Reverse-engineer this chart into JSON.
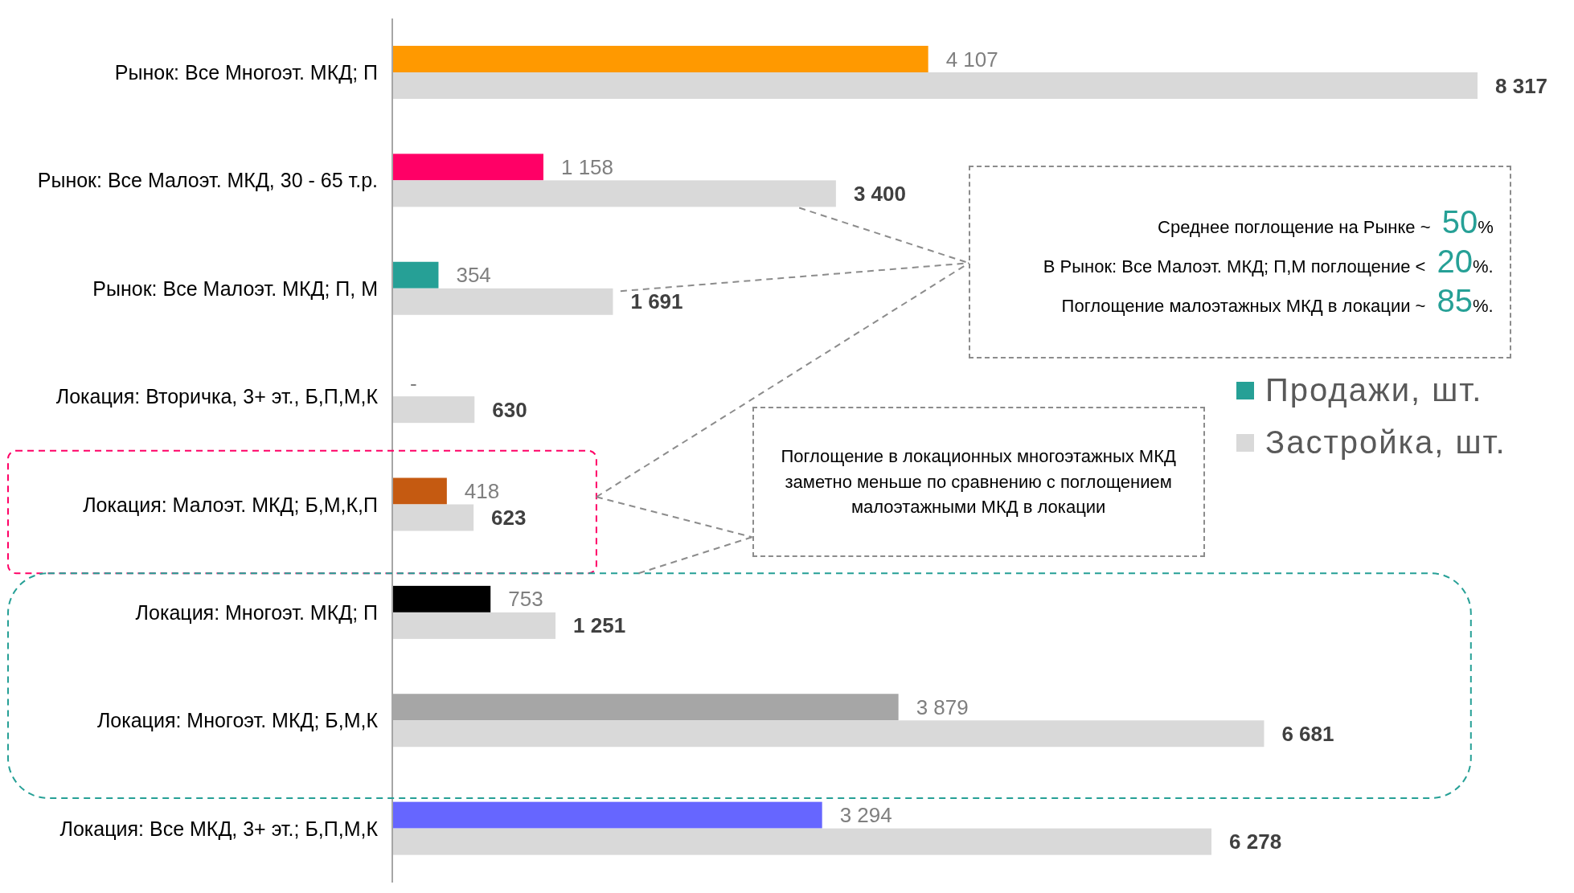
{
  "chart_data": {
    "type": "bar",
    "orientation": "horizontal",
    "categories": [
      "Рынок: Все Многоэт. МКД; П",
      "Рынок: Все Малоэт. МКД, 30 - 65 т.р.",
      "Рынок: Все Малоэт. МКД; П, М",
      "Локация: Вторичка, 3+ эт., Б,П,М,К",
      "Локация: Малоэт. МКД; Б,М,К,П",
      "Локация: Многоэт. МКД; П",
      "Локация: Многоэт. МКД; Б,М,К",
      "Локация: Все МКД, 3+ эт.; Б,П,М,К"
    ],
    "series": [
      {
        "name": "Продажи, шт.",
        "color": "#26a096",
        "colors": [
          "#ff9900",
          "#ff0066",
          "#26a096",
          "#26a096",
          "#c55a11",
          "#000000",
          "#a6a6a6",
          "#6666ff"
        ],
        "values": [
          4107,
          1158,
          354,
          0,
          418,
          753,
          3879,
          3294
        ],
        "value_labels": [
          "4 107",
          "1 158",
          "354",
          "-",
          "418",
          "753",
          "3 879",
          "3 294"
        ]
      },
      {
        "name": "Застройка, шт.",
        "color": "#d9d9d9",
        "values": [
          8317,
          3400,
          1691,
          630,
          623,
          1251,
          6681,
          6278
        ],
        "value_labels": [
          "8 317",
          "3 400",
          "1 691",
          "630",
          "623",
          "1 251",
          "6 681",
          "6 278"
        ]
      }
    ],
    "annotations": [
      "Среднее поглощение на Рынке ~ 50%",
      "В Рынок: Все Малоэт. МКД; П,М поглощение < 20%.",
      "Поглощение малоэтажных МКД в локации ~ 85%.",
      "Поглощение в локационных многоэтажных МКД заметно меньше по сравнению с поглощением малоэтажными МКД в локации"
    ],
    "legend": "right",
    "tick_labels": "y",
    "grid": false
  }
}
